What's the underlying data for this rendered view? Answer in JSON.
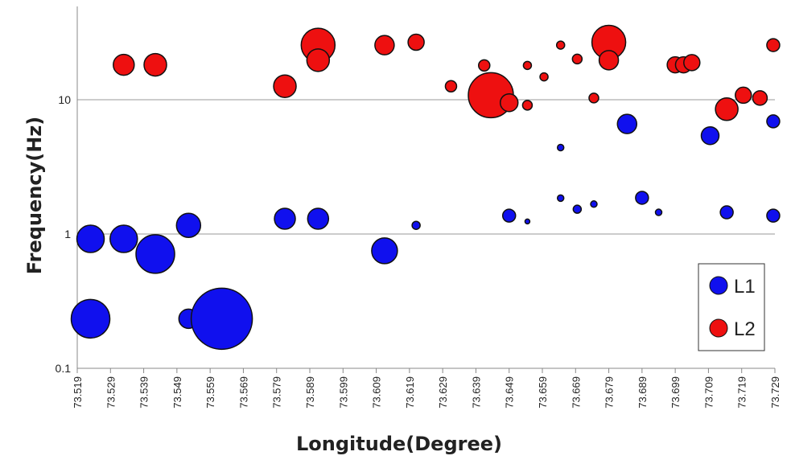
{
  "chart_data": {
    "type": "scatter",
    "variant": "bubble",
    "xlabel": "Longitude(Degree)",
    "ylabel": "Frequency(Hz)",
    "xlim": [
      73.519,
      73.729
    ],
    "ylim": [
      0.1,
      50
    ],
    "yscale": "log",
    "x_ticks": [
      "73.519",
      "73.529",
      "73.539",
      "73.549",
      "73.559",
      "73.569",
      "73.579",
      "73.589",
      "73.599",
      "73.609",
      "73.619",
      "73.629",
      "73.639",
      "73.649",
      "73.659",
      "73.669",
      "73.679",
      "73.689",
      "73.699",
      "73.709",
      "73.719",
      "73.729"
    ],
    "y_ticks": [
      {
        "value": 0.1,
        "label": "0.1"
      },
      {
        "value": 1,
        "label": "1"
      },
      {
        "value": 10,
        "label": "10"
      }
    ],
    "grid": "horizontal at major y ticks",
    "legend": "bottom-right",
    "series": [
      {
        "name": "L1",
        "color": "#1010ee",
        "points": [
          {
            "x": 73.523,
            "y": 0.92,
            "size": 17
          },
          {
            "x": 73.533,
            "y": 0.92,
            "size": 17
          },
          {
            "x": 73.5425,
            "y": 0.71,
            "size": 24
          },
          {
            "x": 73.523,
            "y": 0.234,
            "size": 24
          },
          {
            "x": 73.5525,
            "y": 1.16,
            "size": 15
          },
          {
            "x": 73.5525,
            "y": 0.234,
            "size": 12
          },
          {
            "x": 73.5625,
            "y": 0.234,
            "size": 38
          },
          {
            "x": 73.5815,
            "y": 1.3,
            "size": 13
          },
          {
            "x": 73.5915,
            "y": 1.3,
            "size": 13
          },
          {
            "x": 73.6115,
            "y": 0.75,
            "size": 16
          },
          {
            "x": 73.621,
            "y": 1.16,
            "size": 5
          },
          {
            "x": 73.649,
            "y": 1.37,
            "size": 8
          },
          {
            "x": 73.6545,
            "y": 1.24,
            "size": 3
          },
          {
            "x": 73.6645,
            "y": 4.4,
            "size": 4
          },
          {
            "x": 73.6645,
            "y": 1.85,
            "size": 4
          },
          {
            "x": 73.6695,
            "y": 1.53,
            "size": 5
          },
          {
            "x": 73.6745,
            "y": 1.67,
            "size": 4
          },
          {
            "x": 73.6845,
            "y": 6.6,
            "size": 12
          },
          {
            "x": 73.689,
            "y": 1.86,
            "size": 8
          },
          {
            "x": 73.694,
            "y": 1.45,
            "size": 4
          },
          {
            "x": 73.7095,
            "y": 5.4,
            "size": 11
          },
          {
            "x": 73.7145,
            "y": 1.45,
            "size": 8
          },
          {
            "x": 73.7285,
            "y": 6.9,
            "size": 8
          },
          {
            "x": 73.7285,
            "y": 1.37,
            "size": 8
          }
        ]
      },
      {
        "name": "L2",
        "color": "#ee1010",
        "points": [
          {
            "x": 73.533,
            "y": 18.2,
            "size": 13
          },
          {
            "x": 73.5425,
            "y": 18.2,
            "size": 14
          },
          {
            "x": 73.5815,
            "y": 12.6,
            "size": 14
          },
          {
            "x": 73.5915,
            "y": 25.5,
            "size": 21
          },
          {
            "x": 73.5915,
            "y": 19.7,
            "size": 14
          },
          {
            "x": 73.6115,
            "y": 25.5,
            "size": 12
          },
          {
            "x": 73.621,
            "y": 26.8,
            "size": 10
          },
          {
            "x": 73.6315,
            "y": 12.6,
            "size": 7
          },
          {
            "x": 73.6415,
            "y": 18.0,
            "size": 7
          },
          {
            "x": 73.6435,
            "y": 10.8,
            "size": 28
          },
          {
            "x": 73.649,
            "y": 9.5,
            "size": 11
          },
          {
            "x": 73.6545,
            "y": 18.0,
            "size": 5
          },
          {
            "x": 73.6545,
            "y": 9.1,
            "size": 6
          },
          {
            "x": 73.6595,
            "y": 14.8,
            "size": 5
          },
          {
            "x": 73.6645,
            "y": 25.5,
            "size": 5
          },
          {
            "x": 73.6695,
            "y": 20.1,
            "size": 6
          },
          {
            "x": 73.6745,
            "y": 10.3,
            "size": 6
          },
          {
            "x": 73.679,
            "y": 26.8,
            "size": 21
          },
          {
            "x": 73.679,
            "y": 19.7,
            "size": 12
          },
          {
            "x": 73.699,
            "y": 18.2,
            "size": 10
          },
          {
            "x": 73.7015,
            "y": 18.2,
            "size": 10
          },
          {
            "x": 73.704,
            "y": 18.9,
            "size": 10
          },
          {
            "x": 73.7145,
            "y": 8.5,
            "size": 14
          },
          {
            "x": 73.7195,
            "y": 10.8,
            "size": 10
          },
          {
            "x": 73.7245,
            "y": 10.3,
            "size": 9
          },
          {
            "x": 73.7285,
            "y": 25.5,
            "size": 8
          }
        ]
      }
    ]
  }
}
